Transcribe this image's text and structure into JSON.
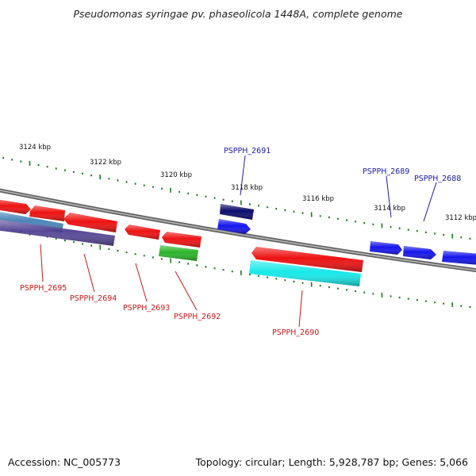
{
  "title": "Pseudomonas syringae pv. phaseolicola 1448A, complete genome",
  "accession_text": "Accession: NC_005773",
  "info_text": "Topology: circular; Length: 5,928,787 bp; Genes: 5,066",
  "colors": {
    "backbone": "#8a8a8a",
    "tick": "#1e7a1e",
    "label_blue": "#1a1aa8",
    "label_red": "#c81818",
    "gene_red": "#ee1111",
    "gene_blue": "#1515ee",
    "gene_navy": "#0c0c6e",
    "gene_green": "#2ab52a",
    "gene_cyan": "#18e8e8",
    "gene_steel": "#4a86b8",
    "gene_purple": "#4a3a8e"
  },
  "scale_labels": [
    {
      "text": "3124 kbp",
      "kb": 3124
    },
    {
      "text": "3122 kbp",
      "kb": 3122
    },
    {
      "text": "3120 kbp",
      "kb": 3120
    },
    {
      "text": "3118 kbp",
      "kb": 3118
    },
    {
      "text": "3116 kbp",
      "kb": 3116
    },
    {
      "text": "3114 kbp",
      "kb": 3114
    },
    {
      "text": "3112 kbp",
      "kb": 3112
    }
  ],
  "gene_labels": [
    {
      "text": "PSPPH_2691",
      "strand": "forward"
    },
    {
      "text": "PSPPH_2689",
      "strand": "forward"
    },
    {
      "text": "PSPPH_2688",
      "strand": "forward"
    },
    {
      "text": "PSPPH_2695",
      "strand": "reverse"
    },
    {
      "text": "PSPPH_2694",
      "strand": "reverse"
    },
    {
      "text": "PSPPH_2693",
      "strand": "reverse"
    },
    {
      "text": "PSPPH_2692",
      "strand": "reverse"
    },
    {
      "text": "PSPPH_2690",
      "strand": "reverse"
    }
  ]
}
